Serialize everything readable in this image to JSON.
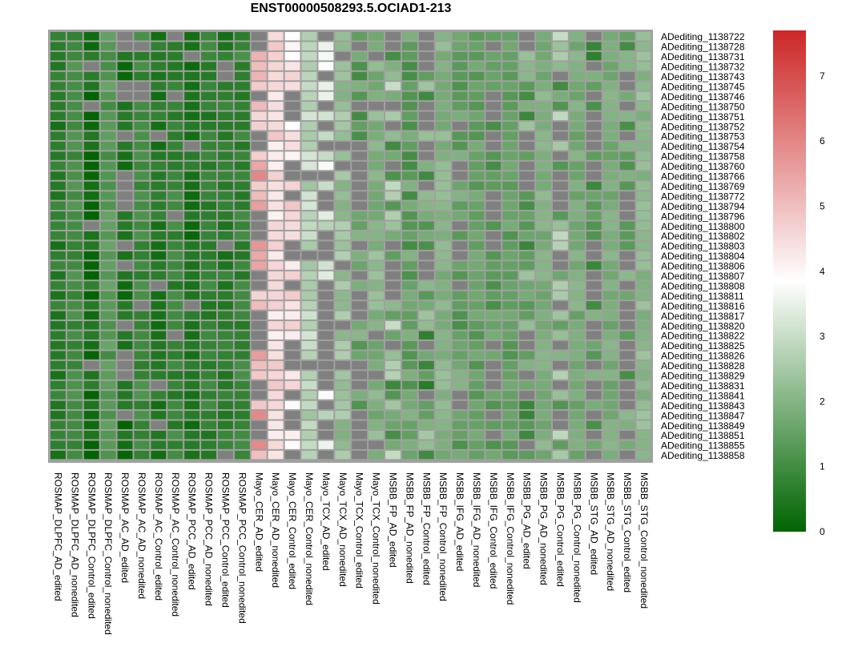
{
  "chart_data": {
    "type": "heatmap",
    "title": "ENST00000508293.5.OCIAD1-213",
    "rows": [
      "ADediting_1138722",
      "ADediting_1138728",
      "ADediting_1138731",
      "ADediting_1138732",
      "ADediting_1138743",
      "ADediting_1138745",
      "ADediting_1138746",
      "ADediting_1138750",
      "ADediting_1138751",
      "ADediting_1138752",
      "ADediting_1138753",
      "ADediting_1138754",
      "ADediting_1138758",
      "ADediting_1138760",
      "ADediting_1138766",
      "ADediting_1138769",
      "ADediting_1138772",
      "ADediting_1138794",
      "ADediting_1138796",
      "ADediting_1138800",
      "ADediting_1138802",
      "ADediting_1138803",
      "ADediting_1138804",
      "ADediting_1138806",
      "ADediting_1138807",
      "ADediting_1138808",
      "ADediting_1138811",
      "ADediting_1138816",
      "ADediting_1138817",
      "ADediting_1138820",
      "ADediting_1138822",
      "ADediting_1138825",
      "ADediting_1138826",
      "ADediting_1138828",
      "ADediting_1138829",
      "ADediting_1138831",
      "ADediting_1138841",
      "ADediting_1138843",
      "ADediting_1138847",
      "ADediting_1138849",
      "ADediting_1138851",
      "ADediting_1138855",
      "ADediting_1138858"
    ],
    "columns": [
      "ROSMAP_DLPFC_AD_edited",
      "ROSMAP_DLPFC_AD_nonedited",
      "ROSMAP_DLPFC_Control_edited",
      "ROSMAP_DLPFC_Control_nonedited",
      "ROSMAP_AC_AD_edited",
      "ROSMAP_AC_AD_nonedited",
      "ROSMAP_AC_Control_edited",
      "ROSMAP_AC_Control_nonedited",
      "ROSMAP_PCC_AD_edited",
      "ROSMAP_PCC_AD_nonedited",
      "ROSMAP_PCC_Control_edited",
      "ROSMAP_PCC_Control_nonedited",
      "Mayo_CER_AD_edited",
      "Mayo_CER_AD_nonedited",
      "Mayo_CER_Control_edited",
      "Mayo_CER_Control_nonedited",
      "Mayo_TCX_AD_edited",
      "Mayo_TCX_AD_nonedited",
      "Mayo_TCX_Control_edited",
      "Mayo_TCX_Control_nonedited",
      "MSBB_FP_AD_edited",
      "MSBB_FP_AD_nonedited",
      "MSBB_FP_Control_edited",
      "MSBB_FP_Control_nonedited",
      "MSBB_IFG_AD_edited",
      "MSBB_IFG_AD_nonedited",
      "MSBB_IFG_Control_edited",
      "MSBB_IFG_Control_nonedited",
      "MSBB_PG_AD_edited",
      "MSBB_PG_AD_nonedited",
      "MSBB_PG_Control_edited",
      "MSBB_PG_Control_nonedited",
      "MSBB_STG_AD_edited",
      "MSBB_STG_AD_nonedited",
      "MSBB_STG_Control_edited",
      "MSBB_STG_Control_nonedited"
    ],
    "column_profiles": [
      {
        "base": 0.6,
        "vary": 0.3
      },
      {
        "base": 1.0,
        "vary": 0.3
      },
      {
        "base": 0.3,
        "vary": 0.4,
        "miss": 0.15
      },
      {
        "base": 1.3,
        "vary": 0.3
      },
      {
        "base": 0.3,
        "vary": 0.3,
        "miss": 0.3
      },
      {
        "base": 0.9,
        "vary": 0.3,
        "miss": 0.1
      },
      {
        "base": 0.5,
        "vary": 0.3,
        "miss": 0.2
      },
      {
        "base": 0.8,
        "vary": 0.3,
        "miss": 0.1
      },
      {
        "base": 0.4,
        "vary": 0.3,
        "miss": 0.15
      },
      {
        "base": 0.7,
        "vary": 0.3
      },
      {
        "base": 0.6,
        "vary": 0.3,
        "miss": 0.15
      },
      {
        "base": 0.8,
        "vary": 0.3
      },
      {
        "base": 5.2,
        "vary": 0.8,
        "miss": 0.4
      },
      {
        "base": 4.5,
        "vary": 0.4
      },
      {
        "base": 4.3,
        "vary": 0.6,
        "miss": 0.4
      },
      {
        "base": 2.8,
        "vary": 0.5,
        "miss": 0.15
      },
      {
        "base": 3.0,
        "vary": 0.8,
        "miss": 0.5
      },
      {
        "base": 2.3,
        "vary": 0.4,
        "miss": 0.2
      },
      {
        "base": 1.5,
        "vary": 0.6,
        "miss": 0.4
      },
      {
        "base": 2.0,
        "vary": 0.4,
        "miss": 0.1
      },
      {
        "base": 2.0,
        "vary": 1.2,
        "miss": 0.3
      },
      {
        "base": 1.5,
        "vary": 0.5
      },
      {
        "base": 1.6,
        "vary": 1.0,
        "miss": 0.4
      },
      {
        "base": 2.0,
        "vary": 0.3
      },
      {
        "base": 1.6,
        "vary": 0.5,
        "miss": 0.3
      },
      {
        "base": 1.5,
        "vary": 0.3
      },
      {
        "base": 1.4,
        "vary": 0.4,
        "miss": 0.4
      },
      {
        "base": 1.5,
        "vary": 0.3
      },
      {
        "base": 1.6,
        "vary": 0.8,
        "miss": 0.3
      },
      {
        "base": 1.9,
        "vary": 0.3
      },
      {
        "base": 2.0,
        "vary": 1.0,
        "miss": 0.4
      },
      {
        "base": 1.8,
        "vary": 0.3
      },
      {
        "base": 1.2,
        "vary": 0.8,
        "miss": 0.45
      },
      {
        "base": 1.8,
        "vary": 0.3
      },
      {
        "base": 1.6,
        "vary": 0.6,
        "miss": 0.6
      },
      {
        "base": 2.1,
        "vary": 0.3
      }
    ],
    "value_range": [
      0,
      7.7
    ],
    "missing_color": "#808080",
    "border_color": "#a0a0a0",
    "colorscale": [
      {
        "value": 0,
        "color": "#006400"
      },
      {
        "value": 3.85,
        "color": "#ffffff"
      },
      {
        "value": 7.7,
        "color": "#cd2626"
      }
    ],
    "legend": {
      "ticks": [
        0,
        1,
        2,
        3,
        4,
        5,
        6,
        7
      ],
      "placement": "right"
    }
  }
}
